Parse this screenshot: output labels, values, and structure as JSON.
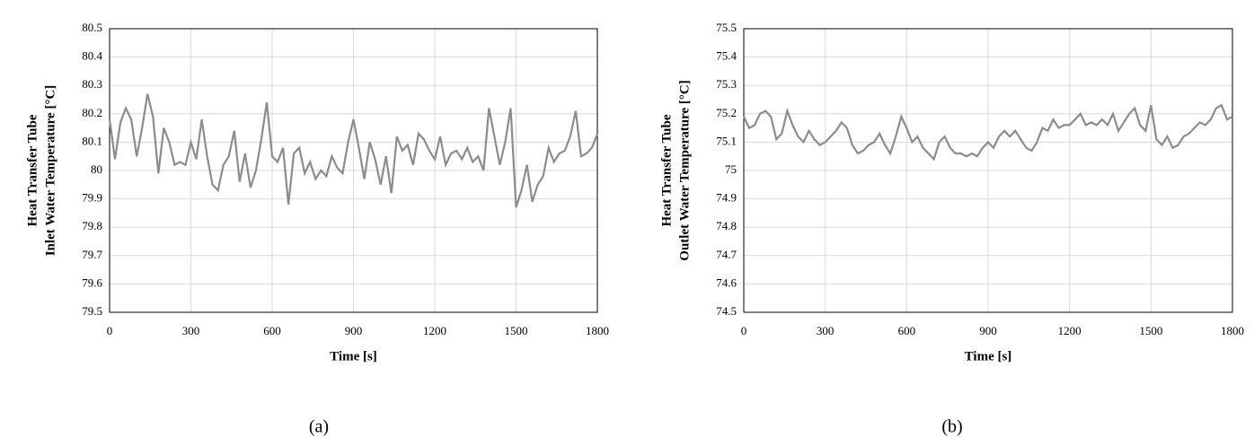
{
  "chart_data": [
    {
      "type": "line",
      "caption": "(a)",
      "xlabel": "Time [s]",
      "ylabel": [
        "Heat Transfer Tube",
        "Inlet Water Temperature [°C]"
      ],
      "xlim": [
        0,
        1800
      ],
      "xticks": [
        0,
        300,
        600,
        900,
        1200,
        1500,
        1800
      ],
      "ylim": [
        79.5,
        80.5
      ],
      "yticks": [
        79.5,
        79.6,
        79.7,
        79.8,
        79.9,
        80,
        80.1,
        80.2,
        80.3,
        80.4,
        80.5
      ],
      "grid": true,
      "x": [
        0,
        20,
        40,
        60,
        80,
        100,
        120,
        140,
        160,
        180,
        200,
        220,
        240,
        260,
        280,
        300,
        320,
        340,
        360,
        380,
        400,
        420,
        440,
        460,
        480,
        500,
        520,
        540,
        560,
        580,
        600,
        620,
        640,
        660,
        680,
        700,
        720,
        740,
        760,
        780,
        800,
        820,
        840,
        860,
        880,
        900,
        920,
        940,
        960,
        980,
        1000,
        1020,
        1040,
        1060,
        1080,
        1100,
        1120,
        1140,
        1160,
        1180,
        1200,
        1220,
        1240,
        1260,
        1280,
        1300,
        1320,
        1340,
        1360,
        1380,
        1400,
        1420,
        1440,
        1460,
        1480,
        1500,
        1520,
        1540,
        1560,
        1580,
        1600,
        1620,
        1640,
        1660,
        1680,
        1700,
        1720,
        1740,
        1760,
        1780,
        1800
      ],
      "series": [
        {
          "color": "#8c8c8c",
          "values": [
            80.18,
            80.04,
            80.17,
            80.22,
            80.18,
            80.05,
            80.15,
            80.27,
            80.19,
            79.99,
            80.15,
            80.1,
            80.02,
            80.03,
            80.02,
            80.1,
            80.04,
            80.18,
            80.05,
            79.95,
            79.93,
            80.02,
            80.05,
            80.14,
            79.96,
            80.06,
            79.94,
            80.0,
            80.11,
            80.24,
            80.05,
            80.03,
            80.08,
            79.88,
            80.06,
            80.08,
            79.99,
            80.03,
            79.97,
            80.0,
            79.98,
            80.05,
            80.01,
            79.99,
            80.1,
            80.18,
            80.08,
            79.97,
            80.1,
            80.04,
            79.95,
            80.05,
            79.92,
            80.12,
            80.07,
            80.09,
            80.02,
            80.13,
            80.11,
            80.07,
            80.04,
            80.12,
            80.02,
            80.06,
            80.07,
            80.04,
            80.08,
            80.03,
            80.05,
            80.0,
            80.22,
            80.12,
            80.02,
            80.1,
            80.22,
            79.87,
            79.93,
            80.02,
            79.89,
            79.95,
            79.98,
            80.08,
            80.03,
            80.06,
            80.07,
            80.12,
            80.21,
            80.05,
            80.06,
            80.08,
            80.13
          ]
        }
      ]
    },
    {
      "type": "line",
      "caption": "(b)",
      "xlabel": "Time [s]",
      "ylabel": [
        "Heat Transfer Tube",
        "Outlet Water Temperature [°C]"
      ],
      "xlim": [
        0,
        1800
      ],
      "xticks": [
        0,
        300,
        600,
        900,
        1200,
        1500,
        1800
      ],
      "ylim": [
        74.5,
        75.5
      ],
      "yticks": [
        74.5,
        74.6,
        74.7,
        74.8,
        74.9,
        75,
        75.1,
        75.2,
        75.3,
        75.4,
        75.5
      ],
      "grid": true,
      "x": [
        0,
        20,
        40,
        60,
        80,
        100,
        120,
        140,
        160,
        180,
        200,
        220,
        240,
        260,
        280,
        300,
        320,
        340,
        360,
        380,
        400,
        420,
        440,
        460,
        480,
        500,
        520,
        540,
        560,
        580,
        600,
        620,
        640,
        660,
        680,
        700,
        720,
        740,
        760,
        780,
        800,
        820,
        840,
        860,
        880,
        900,
        920,
        940,
        960,
        980,
        1000,
        1020,
        1040,
        1060,
        1080,
        1100,
        1120,
        1140,
        1160,
        1180,
        1200,
        1220,
        1240,
        1260,
        1280,
        1300,
        1320,
        1340,
        1360,
        1380,
        1400,
        1420,
        1440,
        1460,
        1480,
        1500,
        1520,
        1540,
        1560,
        1580,
        1600,
        1620,
        1640,
        1660,
        1680,
        1700,
        1720,
        1740,
        1760,
        1780,
        1800
      ],
      "series": [
        {
          "color": "#8c8c8c",
          "values": [
            75.19,
            75.15,
            75.16,
            75.2,
            75.21,
            75.19,
            75.11,
            75.13,
            75.21,
            75.16,
            75.12,
            75.1,
            75.14,
            75.11,
            75.09,
            75.1,
            75.12,
            75.14,
            75.17,
            75.15,
            75.09,
            75.06,
            75.07,
            75.09,
            75.1,
            75.13,
            75.09,
            75.06,
            75.12,
            75.19,
            75.15,
            75.1,
            75.12,
            75.08,
            75.06,
            75.04,
            75.1,
            75.12,
            75.08,
            75.06,
            75.06,
            75.05,
            75.06,
            75.05,
            75.08,
            75.1,
            75.08,
            75.12,
            75.14,
            75.12,
            75.14,
            75.11,
            75.08,
            75.07,
            75.1,
            75.15,
            75.14,
            75.18,
            75.15,
            75.16,
            75.16,
            75.18,
            75.2,
            75.16,
            75.17,
            75.16,
            75.18,
            75.16,
            75.2,
            75.14,
            75.17,
            75.2,
            75.22,
            75.16,
            75.14,
            75.23,
            75.11,
            75.09,
            75.12,
            75.08,
            75.09,
            75.12,
            75.13,
            75.15,
            75.17,
            75.16,
            75.18,
            75.22,
            75.23,
            75.18,
            75.19
          ]
        }
      ]
    }
  ]
}
